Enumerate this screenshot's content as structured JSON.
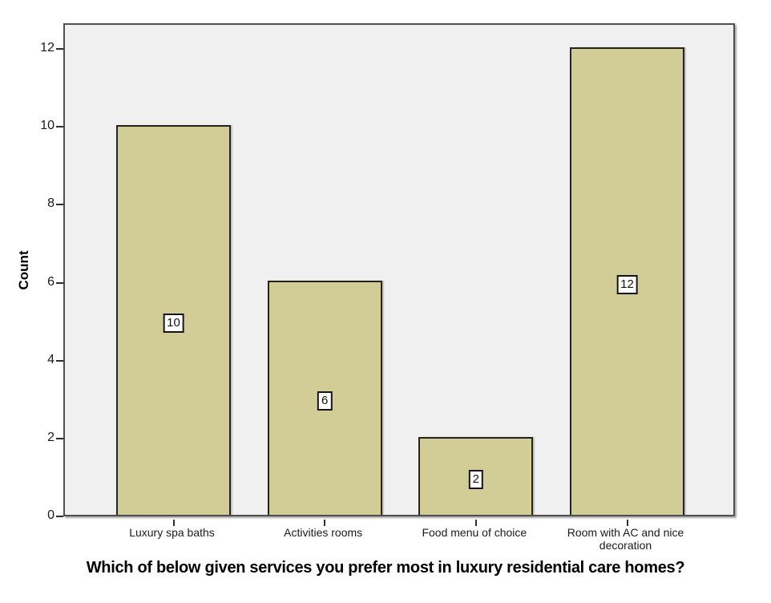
{
  "figure": {
    "ylabel": "Count",
    "title": "Which of below given services you prefer most in luxury residential care homes?"
  },
  "chart_data": {
    "type": "bar",
    "categories": [
      "Luxury spa baths",
      "Activities rooms",
      "Food menu of choice",
      "Room with AC and nice decoration"
    ],
    "values": [
      10,
      6,
      2,
      12
    ],
    "bar_labels": [
      "10",
      "6",
      "2",
      "12"
    ],
    "title": "Which of below given services you prefer most in luxury residential care homes?",
    "xlabel": "",
    "ylabel": "Count",
    "yticks": [
      0,
      2,
      4,
      6,
      8,
      10,
      12
    ],
    "ylim": [
      0,
      12.65
    ],
    "grid": false,
    "legend": "none",
    "bar_color": "#d2cd96",
    "bar_border_color": "#25231a",
    "plot_bg": "#f0f0f0",
    "frame_color": "#4f4f4f",
    "value_box_bg": "#ffffff",
    "value_box_border": "#141414",
    "text_color": "#1a1a1a"
  }
}
